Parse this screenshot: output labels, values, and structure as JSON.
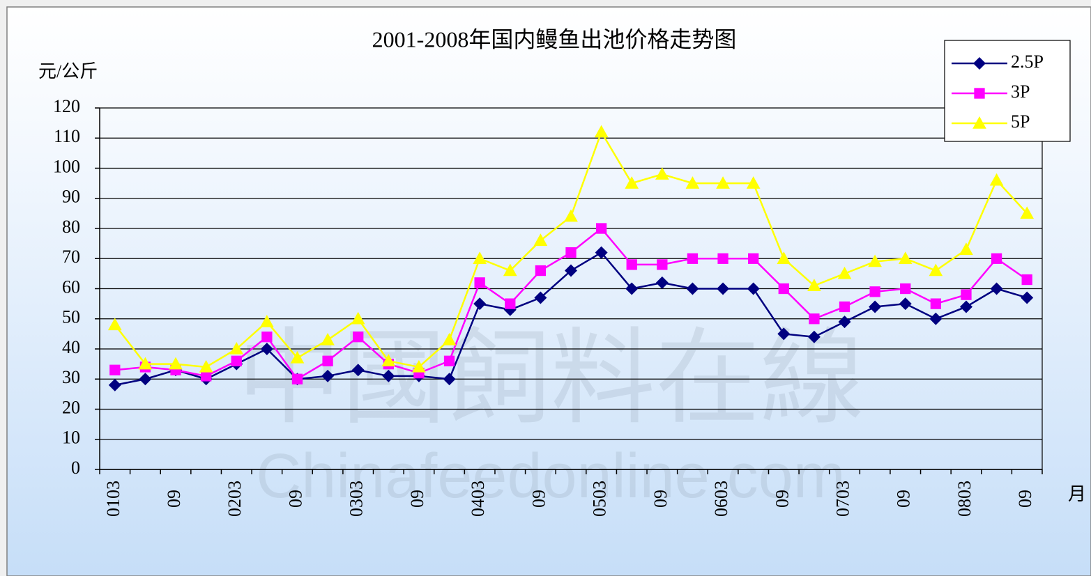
{
  "chart_data": {
    "type": "line",
    "title": "2001-2008年国内鳗鱼出池价格走势图",
    "y_label": "元/公斤",
    "x_label": "月",
    "watermark": [
      "中國飼料在線",
      "Chinafeedonline.com"
    ],
    "categories": [
      "0103",
      null,
      "09",
      null,
      "0203",
      null,
      "09",
      null,
      "0303",
      null,
      "09",
      null,
      "0403",
      null,
      "09",
      null,
      "0503",
      null,
      "09",
      null,
      "0603",
      null,
      "09",
      null,
      "0703",
      null,
      "09",
      null,
      "0803",
      null,
      "09"
    ],
    "series": [
      {
        "name": "2.5P",
        "color": "#000080",
        "marker": "diamond",
        "values": [
          28,
          30,
          33,
          30,
          35,
          40,
          30,
          31,
          33,
          31,
          31,
          30,
          55,
          53,
          57,
          66,
          72,
          60,
          62,
          60,
          60,
          60,
          45,
          44,
          49,
          54,
          55,
          50,
          54,
          60,
          57
        ]
      },
      {
        "name": "3P",
        "color": "#ff00ff",
        "marker": "square",
        "values": [
          33,
          34,
          33,
          31,
          36,
          44,
          30,
          36,
          44,
          35,
          32,
          36,
          62,
          55,
          66,
          72,
          80,
          68,
          68,
          70,
          70,
          70,
          60,
          50,
          54,
          59,
          60,
          55,
          58,
          70,
          63
        ]
      },
      {
        "name": "5P",
        "color": "#ffff00",
        "marker": "triangle",
        "values": [
          48,
          35,
          35,
          34,
          40,
          49,
          37,
          43,
          50,
          36,
          34,
          43,
          70,
          66,
          76,
          84,
          112,
          95,
          98,
          95,
          95,
          95,
          70,
          61,
          65,
          69,
          70,
          66,
          73,
          96,
          85
        ]
      }
    ],
    "ylim": [
      0,
      120
    ],
    "yticks": [
      0,
      10,
      20,
      30,
      40,
      50,
      60,
      70,
      80,
      90,
      100,
      110,
      120
    ],
    "grid": true,
    "legend": "top-right"
  }
}
